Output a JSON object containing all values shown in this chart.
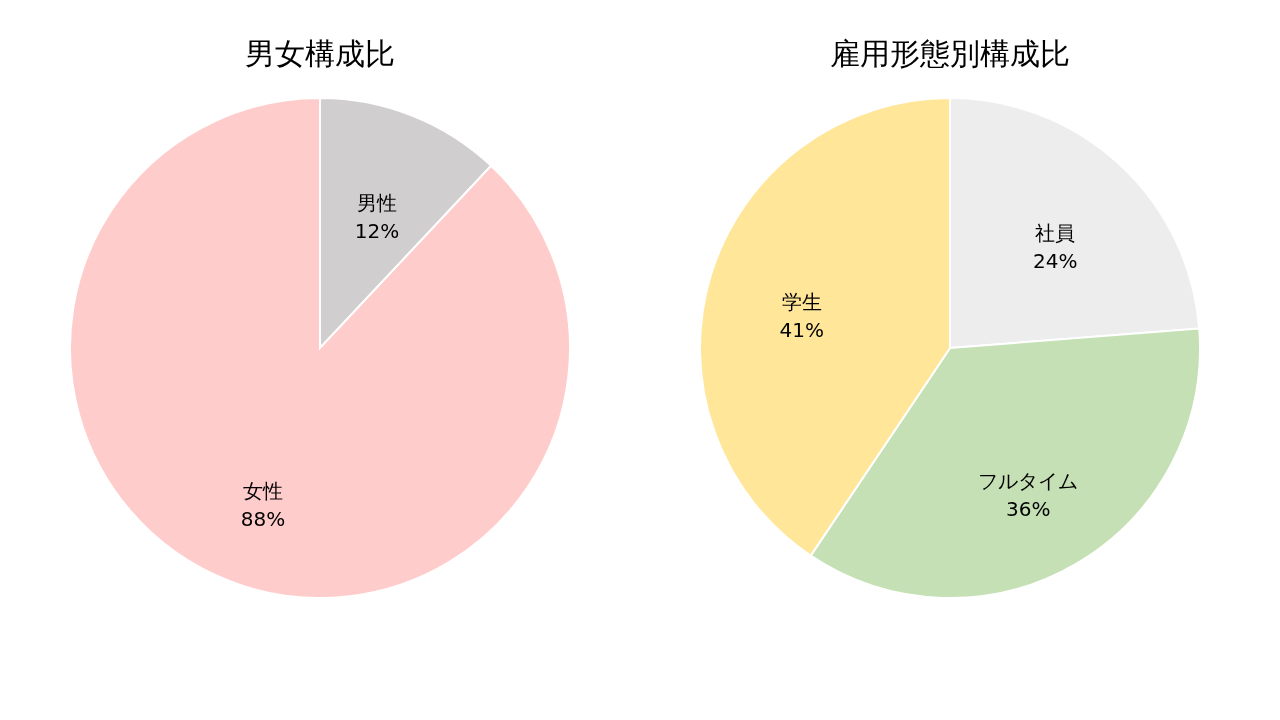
{
  "chart_data": [
    {
      "type": "pie",
      "title": "男女構成比",
      "categories": [
        "男性",
        "女性"
      ],
      "values": [
        12,
        88
      ],
      "colors": [
        "#d0cece",
        "#ffcccc"
      ],
      "value_labels": [
        "12%",
        "88%"
      ]
    },
    {
      "type": "pie",
      "title": "雇用形態別構成比",
      "categories": [
        "社員",
        "フルタイム",
        "学生"
      ],
      "values": [
        24,
        36,
        41
      ],
      "colors": [
        "#ededed",
        "#c5e0b4",
        "#ffe699"
      ],
      "value_labels": [
        "24%",
        "36%",
        "41%"
      ]
    }
  ]
}
